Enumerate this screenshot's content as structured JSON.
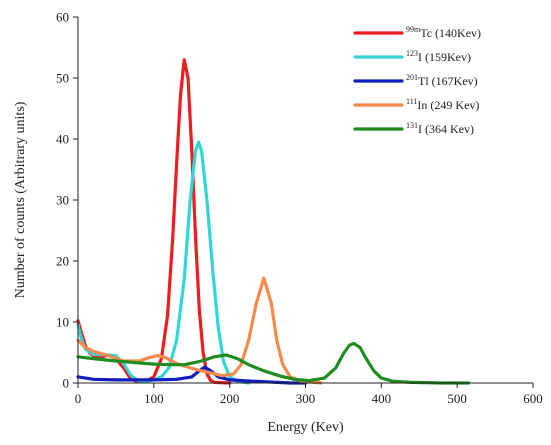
{
  "chart_data": {
    "type": "line",
    "title": "",
    "xlabel": "Energy (Kev)",
    "ylabel": "Number of counts (Arbitrary units)",
    "xlim": [
      0,
      600
    ],
    "ylim": [
      0,
      60
    ],
    "x_ticks": [
      "0",
      "100",
      "200",
      "300",
      "400",
      "500",
      "600"
    ],
    "y_ticks": [
      "0",
      "10",
      "20",
      "30",
      "40",
      "50",
      "60"
    ],
    "grid": false,
    "legend_position": "top-right",
    "series": [
      {
        "name": "99mTc (140Kev)",
        "label_sup": "99m",
        "label_main": "Tc (140Kev)",
        "color": "#ee1c1c",
        "points": [
          [
            0,
            10.2
          ],
          [
            5,
            8
          ],
          [
            10,
            6
          ],
          [
            15,
            5
          ],
          [
            20,
            4.5
          ],
          [
            30,
            4.2
          ],
          [
            40,
            4.6
          ],
          [
            50,
            4
          ],
          [
            60,
            2.5
          ],
          [
            70,
            0.6
          ],
          [
            80,
            0.2
          ],
          [
            90,
            0.3
          ],
          [
            100,
            1
          ],
          [
            110,
            4
          ],
          [
            118,
            11
          ],
          [
            125,
            24
          ],
          [
            130,
            36
          ],
          [
            135,
            47
          ],
          [
            140,
            53
          ],
          [
            145,
            50
          ],
          [
            150,
            38
          ],
          [
            155,
            24
          ],
          [
            160,
            12
          ],
          [
            165,
            5
          ],
          [
            170,
            1.5
          ],
          [
            175,
            0.4
          ],
          [
            180,
            0.1
          ],
          [
            200,
            0
          ]
        ]
      },
      {
        "name": "123I (159Kev)",
        "label_sup": "123",
        "label_main": "I (159Kev)",
        "color": "#33d6d6",
        "points": [
          [
            0,
            9.5
          ],
          [
            5,
            7
          ],
          [
            10,
            5.5
          ],
          [
            20,
            4.7
          ],
          [
            35,
            4.6
          ],
          [
            50,
            4.5
          ],
          [
            60,
            3.2
          ],
          [
            70,
            1.2
          ],
          [
            80,
            0.3
          ],
          [
            90,
            0.3
          ],
          [
            100,
            0.5
          ],
          [
            110,
            1
          ],
          [
            120,
            2.5
          ],
          [
            130,
            7
          ],
          [
            140,
            17
          ],
          [
            148,
            30
          ],
          [
            155,
            38
          ],
          [
            159,
            39.5
          ],
          [
            163,
            38
          ],
          [
            170,
            30
          ],
          [
            178,
            18
          ],
          [
            185,
            9
          ],
          [
            192,
            3.5
          ],
          [
            200,
            1
          ],
          [
            210,
            0.3
          ],
          [
            225,
            0
          ]
        ]
      },
      {
        "name": "201Tl (167Kev)",
        "label_sup": "201",
        "label_main": "Tl (167Kev)",
        "color": "#0f1fbf",
        "points": [
          [
            0,
            1
          ],
          [
            10,
            0.8
          ],
          [
            20,
            0.6
          ],
          [
            50,
            0.5
          ],
          [
            100,
            0.5
          ],
          [
            130,
            0.6
          ],
          [
            150,
            1
          ],
          [
            160,
            2
          ],
          [
            167,
            2.6
          ],
          [
            175,
            2
          ],
          [
            185,
            1
          ],
          [
            200,
            0.5
          ],
          [
            230,
            0.3
          ],
          [
            280,
            0
          ],
          [
            300,
            0
          ]
        ]
      },
      {
        "name": "111In (249 Kev)",
        "label_sup": "111",
        "label_main": "In (249 Kev)",
        "color": "#f7894a",
        "points": [
          [
            0,
            7
          ],
          [
            10,
            5.8
          ],
          [
            20,
            5.2
          ],
          [
            40,
            4.5
          ],
          [
            60,
            3.6
          ],
          [
            80,
            3.6
          ],
          [
            95,
            4.2
          ],
          [
            105,
            4.5
          ],
          [
            115,
            4.2
          ],
          [
            130,
            3.2
          ],
          [
            150,
            2.4
          ],
          [
            170,
            1.8
          ],
          [
            190,
            1.2
          ],
          [
            205,
            1.5
          ],
          [
            215,
            3
          ],
          [
            225,
            7
          ],
          [
            235,
            13
          ],
          [
            245,
            17.2
          ],
          [
            255,
            13
          ],
          [
            262,
            7
          ],
          [
            270,
            3
          ],
          [
            280,
            1
          ],
          [
            295,
            0.3
          ],
          [
            320,
            0
          ]
        ]
      },
      {
        "name": "131I (364 Kev)",
        "label_sup": "131",
        "label_main": "I (364 Kev)",
        "color": "#1f8c1f",
        "points": [
          [
            0,
            4.3
          ],
          [
            20,
            4
          ],
          [
            50,
            3.6
          ],
          [
            80,
            3.3
          ],
          [
            100,
            3.1
          ],
          [
            120,
            3
          ],
          [
            140,
            3
          ],
          [
            160,
            3.5
          ],
          [
            180,
            4.3
          ],
          [
            195,
            4.6
          ],
          [
            210,
            4
          ],
          [
            225,
            3
          ],
          [
            245,
            2
          ],
          [
            265,
            1.2
          ],
          [
            285,
            0.6
          ],
          [
            305,
            0.4
          ],
          [
            325,
            0.8
          ],
          [
            340,
            2.5
          ],
          [
            350,
            4.8
          ],
          [
            358,
            6.2
          ],
          [
            364,
            6.5
          ],
          [
            372,
            5.8
          ],
          [
            380,
            4
          ],
          [
            390,
            2
          ],
          [
            400,
            0.8
          ],
          [
            415,
            0.3
          ],
          [
            440,
            0.1
          ],
          [
            480,
            0
          ],
          [
            515,
            0
          ]
        ]
      }
    ]
  }
}
